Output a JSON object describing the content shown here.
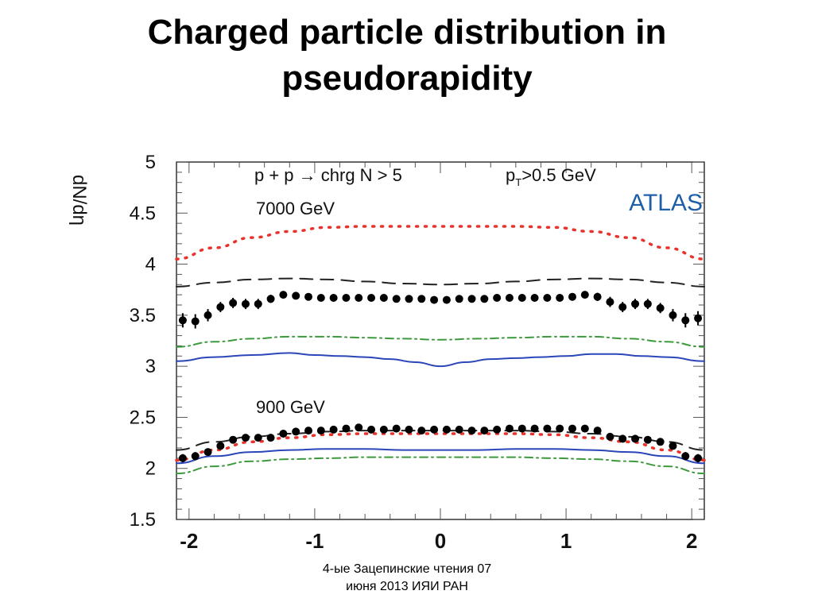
{
  "slide": {
    "title_line1": "Charged particle distribution in",
    "title_line2": "pseudorapidity",
    "footer_line1": "4-ые Зацепинские чтения 07",
    "footer_line2": "июня 2013 ИЯИ РАН"
  },
  "chart_data": {
    "type": "scatter",
    "ylabel": "dN/dη",
    "xlabel": "",
    "xlim": [
      -2.1,
      2.1
    ],
    "ylim": [
      1.5,
      5.0
    ],
    "xticks": [
      "-2",
      "-1",
      "0",
      "1",
      "2"
    ],
    "yticks": [
      "1.5",
      "2",
      "2.5",
      "3",
      "3.5",
      "4",
      "4.5",
      "5"
    ],
    "annotations": {
      "selection": "p + p → chrg N > 5",
      "pt_cut_prefix": "p",
      "pt_cut_sub": "T",
      "pt_cut_suffix": ">0.5 GeV",
      "energy_high": "7000 GeV",
      "energy_low": "900 GeV",
      "experiment": "ATLAS"
    },
    "colors": {
      "data": "#000000",
      "red_dotted": "#e8322a",
      "black_dashed": "#222222",
      "green_dashdot": "#3c9a3c",
      "blue_solid": "#2a46b8",
      "atlas": "#1f5fa8"
    },
    "series": [
      {
        "kind": "data",
        "x": [
          -2.05,
          -1.95,
          -1.85,
          -1.75,
          -1.65,
          -1.55,
          -1.45,
          -1.35,
          -1.25,
          -1.15,
          -1.05,
          -0.95,
          -0.85,
          -0.75,
          -0.65,
          -0.55,
          -0.45,
          -0.35,
          -0.25,
          -0.15,
          -0.05,
          0.05,
          0.15,
          0.25,
          0.35,
          0.45,
          0.55,
          0.65,
          0.75,
          0.85,
          0.95,
          1.05,
          1.15,
          1.25,
          1.35,
          1.45,
          1.55,
          1.65,
          1.75,
          1.85,
          1.95,
          2.05
        ],
        "y": [
          3.45,
          3.44,
          3.5,
          3.58,
          3.62,
          3.61,
          3.61,
          3.66,
          3.7,
          3.69,
          3.68,
          3.67,
          3.67,
          3.67,
          3.67,
          3.67,
          3.67,
          3.66,
          3.66,
          3.66,
          3.65,
          3.65,
          3.66,
          3.66,
          3.66,
          3.67,
          3.67,
          3.67,
          3.67,
          3.67,
          3.67,
          3.68,
          3.7,
          3.68,
          3.63,
          3.58,
          3.61,
          3.61,
          3.57,
          3.5,
          3.45,
          3.47
        ],
        "err": [
          0.07,
          0.07,
          0.06,
          0.05,
          0.05,
          0.05,
          0.05,
          0.04,
          0.03,
          0.03,
          0.03,
          0.03,
          0.03,
          0.03,
          0.03,
          0.03,
          0.03,
          0.03,
          0.03,
          0.03,
          0.03,
          0.03,
          0.03,
          0.03,
          0.03,
          0.03,
          0.03,
          0.03,
          0.03,
          0.03,
          0.03,
          0.03,
          0.03,
          0.04,
          0.05,
          0.05,
          0.05,
          0.05,
          0.05,
          0.06,
          0.07,
          0.07
        ]
      },
      {
        "kind": "data",
        "x": [
          -2.05,
          -1.95,
          -1.85,
          -1.75,
          -1.65,
          -1.55,
          -1.45,
          -1.35,
          -1.25,
          -1.15,
          -1.05,
          -0.95,
          -0.85,
          -0.75,
          -0.65,
          -0.55,
          -0.45,
          -0.35,
          -0.25,
          -0.15,
          -0.05,
          0.05,
          0.15,
          0.25,
          0.35,
          0.45,
          0.55,
          0.65,
          0.75,
          0.85,
          0.95,
          1.05,
          1.15,
          1.25,
          1.35,
          1.45,
          1.55,
          1.65,
          1.75,
          1.85,
          1.95,
          2.05
        ],
        "y": [
          2.1,
          2.12,
          2.16,
          2.22,
          2.28,
          2.3,
          2.3,
          2.3,
          2.34,
          2.36,
          2.37,
          2.37,
          2.38,
          2.39,
          2.4,
          2.38,
          2.38,
          2.39,
          2.38,
          2.37,
          2.38,
          2.38,
          2.38,
          2.37,
          2.37,
          2.38,
          2.39,
          2.39,
          2.39,
          2.39,
          2.39,
          2.39,
          2.39,
          2.37,
          2.31,
          2.29,
          2.29,
          2.28,
          2.26,
          2.22,
          2.12,
          2.1
        ],
        "err": [
          0.04,
          0.04,
          0.03,
          0.03,
          0.02,
          0.02,
          0.02,
          0.02,
          0.02,
          0.02,
          0.02,
          0.02,
          0.02,
          0.02,
          0.02,
          0.02,
          0.02,
          0.02,
          0.02,
          0.02,
          0.02,
          0.02,
          0.02,
          0.02,
          0.02,
          0.02,
          0.02,
          0.02,
          0.02,
          0.02,
          0.02,
          0.02,
          0.02,
          0.02,
          0.02,
          0.02,
          0.02,
          0.02,
          0.03,
          0.03,
          0.04,
          0.04
        ]
      },
      {
        "kind": "curve",
        "style": "red_dotted",
        "x": [
          -2.1,
          -1.8,
          -1.5,
          -1.2,
          -0.9,
          -0.6,
          -0.3,
          0.0,
          0.3,
          0.6,
          0.9,
          1.2,
          1.5,
          1.8,
          2.1
        ],
        "y": [
          4.05,
          4.16,
          4.26,
          4.32,
          4.36,
          4.37,
          4.37,
          4.37,
          4.37,
          4.37,
          4.36,
          4.32,
          4.26,
          4.16,
          4.05
        ]
      },
      {
        "kind": "curve",
        "style": "black_dashed",
        "x": [
          -2.1,
          -1.8,
          -1.5,
          -1.2,
          -0.9,
          -0.6,
          -0.3,
          0.0,
          0.3,
          0.6,
          0.9,
          1.2,
          1.5,
          1.8,
          2.1
        ],
        "y": [
          3.78,
          3.82,
          3.85,
          3.86,
          3.85,
          3.83,
          3.81,
          3.8,
          3.81,
          3.83,
          3.85,
          3.86,
          3.85,
          3.82,
          3.78
        ]
      },
      {
        "kind": "curve",
        "style": "green_dashdot",
        "x": [
          -2.1,
          -1.8,
          -1.5,
          -1.2,
          -0.9,
          -0.6,
          -0.3,
          0.0,
          0.3,
          0.6,
          0.9,
          1.2,
          1.5,
          1.8,
          2.1
        ],
        "y": [
          3.19,
          3.24,
          3.27,
          3.29,
          3.29,
          3.28,
          3.27,
          3.26,
          3.27,
          3.28,
          3.29,
          3.29,
          3.27,
          3.24,
          3.19
        ]
      },
      {
        "kind": "curve",
        "style": "blue_solid",
        "x": [
          -2.1,
          -1.8,
          -1.5,
          -1.2,
          -1.0,
          -0.8,
          -0.6,
          -0.4,
          -0.2,
          0.0,
          0.2,
          0.4,
          0.6,
          0.8,
          1.0,
          1.2,
          1.4,
          1.6,
          1.8,
          2.1
        ],
        "y": [
          3.05,
          3.09,
          3.11,
          3.13,
          3.11,
          3.1,
          3.09,
          3.07,
          3.04,
          3.0,
          3.04,
          3.07,
          3.08,
          3.09,
          3.1,
          3.12,
          3.12,
          3.1,
          3.09,
          3.05
        ]
      },
      {
        "kind": "curve",
        "style": "red_dotted",
        "x": [
          -2.1,
          -1.8,
          -1.5,
          -1.2,
          -0.9,
          -0.6,
          -0.3,
          0.0,
          0.3,
          0.6,
          0.9,
          1.2,
          1.5,
          1.8,
          2.1
        ],
        "y": [
          2.08,
          2.18,
          2.26,
          2.3,
          2.33,
          2.34,
          2.34,
          2.34,
          2.34,
          2.34,
          2.33,
          2.3,
          2.26,
          2.18,
          2.08
        ]
      },
      {
        "kind": "curve",
        "style": "black_dashed",
        "x": [
          -2.1,
          -1.8,
          -1.5,
          -1.2,
          -0.9,
          -0.6,
          -0.3,
          0.0,
          0.3,
          0.6,
          0.9,
          1.2,
          1.5,
          1.8,
          2.1
        ],
        "y": [
          2.18,
          2.26,
          2.31,
          2.34,
          2.36,
          2.37,
          2.37,
          2.37,
          2.37,
          2.37,
          2.36,
          2.34,
          2.31,
          2.26,
          2.18
        ]
      },
      {
        "kind": "curve",
        "style": "blue_solid",
        "x": [
          -2.1,
          -1.8,
          -1.5,
          -1.2,
          -0.9,
          -0.6,
          -0.3,
          0.0,
          0.3,
          0.6,
          0.9,
          1.2,
          1.5,
          1.8,
          2.1
        ],
        "y": [
          2.05,
          2.12,
          2.16,
          2.18,
          2.19,
          2.19,
          2.18,
          2.18,
          2.18,
          2.19,
          2.19,
          2.18,
          2.16,
          2.12,
          2.05
        ]
      },
      {
        "kind": "curve",
        "style": "green_dashdot",
        "x": [
          -2.1,
          -1.8,
          -1.5,
          -1.2,
          -0.9,
          -0.6,
          -0.3,
          0.0,
          0.3,
          0.6,
          0.9,
          1.2,
          1.5,
          1.8,
          2.1
        ],
        "y": [
          1.95,
          2.02,
          2.07,
          2.09,
          2.1,
          2.11,
          2.11,
          2.11,
          2.11,
          2.11,
          2.1,
          2.09,
          2.07,
          2.02,
          1.95
        ]
      }
    ]
  }
}
